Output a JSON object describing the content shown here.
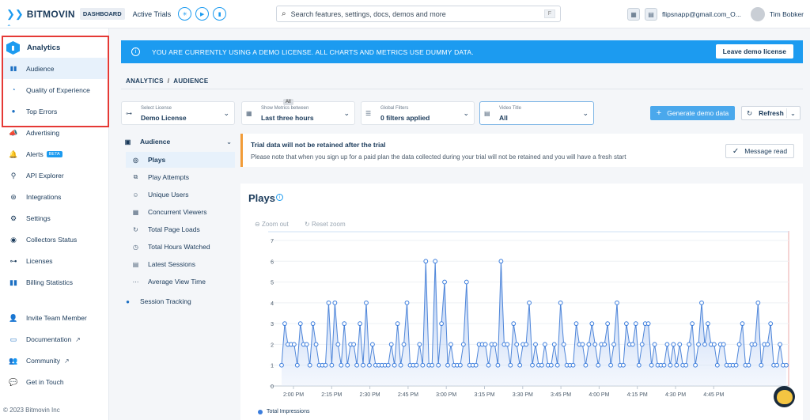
{
  "header": {
    "brand": "BITMOVIN",
    "badge": "DASHBOARD",
    "active_trials": "Active Trials",
    "search_placeholder": "Search features, settings, docs, demos and more",
    "search_shortcut": "F",
    "user_email": "flipsnapp@gmail.com_O...",
    "user_name": "Tim Bobker"
  },
  "sidebar": {
    "analytics_label": "Analytics",
    "sub_items": [
      {
        "label": "Audience",
        "icon": "bar-chart-icon"
      },
      {
        "label": "Quality of Experience",
        "icon": "gauge-icon"
      },
      {
        "label": "Top Errors",
        "icon": "alert-icon"
      }
    ],
    "items": [
      {
        "label": "Advertising",
        "icon": "megaphone-icon"
      },
      {
        "label": "Alerts",
        "icon": "bell-icon",
        "badge": "BETA"
      },
      {
        "label": "API Explorer",
        "icon": "api-icon"
      },
      {
        "label": "Integrations",
        "icon": "plug-icon"
      },
      {
        "label": "Settings",
        "icon": "gear-icon"
      },
      {
        "label": "Collectors Status",
        "icon": "signal-icon"
      },
      {
        "label": "Licenses",
        "icon": "key-icon"
      },
      {
        "label": "Billing Statistics",
        "icon": "bar-chart-icon"
      }
    ],
    "bottom_items": [
      {
        "label": "Invite Team Member",
        "icon": "user-plus-icon"
      },
      {
        "label": "Documentation",
        "icon": "book-icon"
      },
      {
        "label": "Community",
        "icon": "community-icon"
      },
      {
        "label": "Get in Touch",
        "icon": "chat-icon"
      }
    ],
    "copyright": "© 2023 Bitmovin Inc"
  },
  "banner": {
    "text": "YOU ARE CURRENTLY USING A DEMO LICENSE. ALL CHARTS AND METRICS USE DUMMY DATA.",
    "button": "Leave demo license"
  },
  "breadcrumb": {
    "root": "ANALYTICS",
    "sep": "/",
    "current": "AUDIENCE"
  },
  "filters": {
    "license": {
      "label": "Select License",
      "value": "Demo License"
    },
    "time": {
      "label": "Show Metrics between",
      "value": "Last three hours",
      "chip": "All"
    },
    "global": {
      "label": "Global Filters",
      "value": "0 filters applied"
    },
    "video": {
      "label": "Video Title",
      "value": "All"
    }
  },
  "actions": {
    "generate": "Generate demo data",
    "refresh": "Refresh"
  },
  "metric_nav": {
    "group": "Audience",
    "items": [
      {
        "label": "Plays",
        "icon": "play-icon"
      },
      {
        "label": "Play Attempts",
        "icon": "play-attempt-icon"
      },
      {
        "label": "Unique Users",
        "icon": "user-icon"
      },
      {
        "label": "Concurrent Viewers",
        "icon": "viewers-icon"
      },
      {
        "label": "Total Page Loads",
        "icon": "reload-icon"
      },
      {
        "label": "Total Hours Watched",
        "icon": "clock-icon"
      },
      {
        "label": "Latest Sessions",
        "icon": "sessions-icon"
      },
      {
        "label": "Average View Time",
        "icon": "timeline-icon"
      }
    ],
    "session_tracking": "Session Tracking"
  },
  "notice": {
    "title": "Trial data will not be retained after the trial",
    "body": "Please note that when you sign up for a paid plan the data collected during your trial will not be retained and you will have a fresh start",
    "button": "Message read"
  },
  "chart": {
    "title": "Plays",
    "zoom_out": "Zoom out",
    "reset_zoom": "Reset zoom"
  },
  "chart_data": {
    "type": "area",
    "title": "Plays",
    "series": [
      {
        "name": "Total Impressions"
      }
    ],
    "x_ticks": [
      "2:00 PM",
      "2:15 PM",
      "2:30 PM",
      "2:45 PM",
      "3:00 PM",
      "3:15 PM",
      "3:30 PM",
      "3:45 PM",
      "4:00 PM",
      "4:15 PM",
      "4:30 PM",
      "4:45 PM"
    ],
    "ylim": [
      0,
      7
    ],
    "y_ticks": [
      0,
      1,
      2,
      3,
      4,
      5,
      6,
      7
    ],
    "values": [
      1,
      3,
      2,
      2,
      2,
      1,
      3,
      2,
      2,
      1,
      3,
      2,
      1,
      1,
      1,
      4,
      1,
      4,
      2,
      1,
      3,
      1,
      2,
      2,
      1,
      3,
      1,
      4,
      1,
      2,
      1,
      1,
      1,
      1,
      1,
      2,
      1,
      3,
      1,
      2,
      4,
      1,
      1,
      1,
      2,
      1,
      6,
      1,
      1,
      6,
      1,
      3,
      5,
      1,
      2,
      1,
      1,
      1,
      2,
      5,
      1,
      1,
      1,
      2,
      2,
      2,
      1,
      2,
      2,
      1,
      6,
      2,
      2,
      1,
      3,
      2,
      1,
      2,
      2,
      4,
      1,
      2,
      1,
      1,
      2,
      1,
      1,
      2,
      1,
      4,
      2,
      1,
      1,
      1,
      3,
      2,
      2,
      1,
      2,
      3,
      2,
      1,
      2,
      2,
      3,
      1,
      2,
      4,
      1,
      1,
      3,
      2,
      2,
      3,
      1,
      2,
      3,
      3,
      1,
      2,
      1,
      1,
      1,
      2,
      1,
      2,
      1,
      2,
      1,
      1,
      2,
      3,
      1,
      2,
      4,
      2,
      3,
      2,
      2,
      1,
      2,
      2,
      1,
      1,
      1,
      1,
      2,
      3,
      1,
      1,
      2,
      2,
      4,
      1,
      2,
      2,
      3,
      1,
      1,
      2,
      1,
      1
    ],
    "grid": true,
    "legend": "bottom-left"
  }
}
